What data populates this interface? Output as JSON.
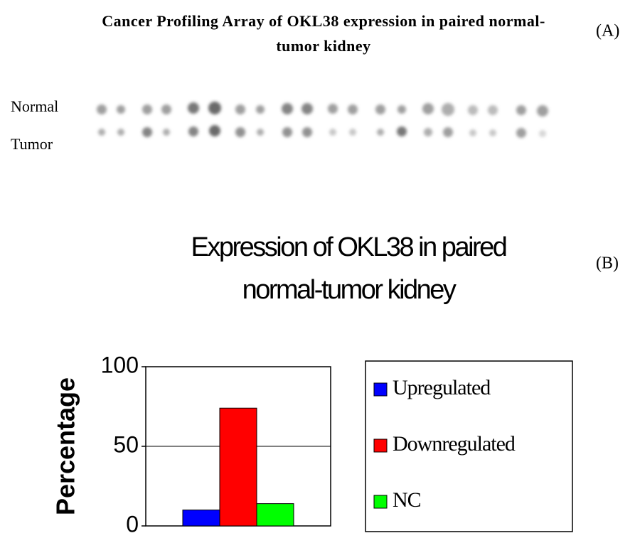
{
  "panel_a": {
    "title": "Cancer Profiling Array of OKL38 expression in paired normal-tumor kidney",
    "label": "(A)",
    "rows": [
      "Normal",
      "Tumor"
    ]
  },
  "panel_b_label": "(B)",
  "chart_data": {
    "type": "bar",
    "title": "Expression of OKL38 in paired normal-tumor kidney",
    "y_label": "Percentage",
    "categories": [
      null
    ],
    "series": [
      {
        "name": "Upregulated",
        "color": "#0000ff",
        "values": [
          10
        ]
      },
      {
        "name": "Downregulated",
        "color": "#ff0000",
        "values": [
          74
        ]
      },
      {
        "name": "NC",
        "color": "#00ff00",
        "values": [
          14
        ]
      }
    ],
    "ylim": [
      0,
      100
    ],
    "yticks": [
      0,
      50,
      100
    ],
    "grid": true,
    "legend": "right"
  }
}
